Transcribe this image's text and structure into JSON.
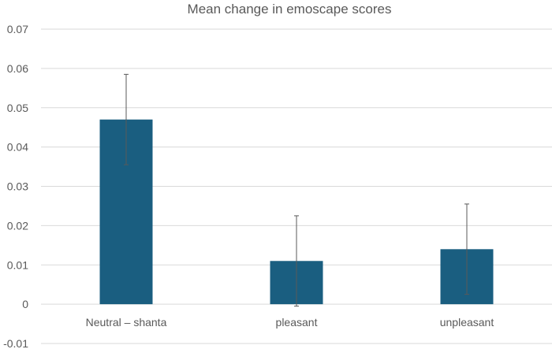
{
  "chart_data": {
    "type": "bar",
    "title": "Mean change in emoscape scores",
    "xlabel": "",
    "ylabel": "",
    "categories": [
      "Neutral – shanta",
      "pleasant",
      "unpleasant"
    ],
    "values": [
      0.047,
      0.011,
      0.014
    ],
    "error": [
      0.0115,
      0.0115,
      0.0115
    ],
    "ylim": [
      -0.01,
      0.07
    ],
    "yticks": [
      "-0.01",
      "0",
      "0.01",
      "0.02",
      "0.03",
      "0.04",
      "0.05",
      "0.06",
      "0.07"
    ],
    "grid": true,
    "legend": "none",
    "bar_color": "#1a5e80"
  }
}
